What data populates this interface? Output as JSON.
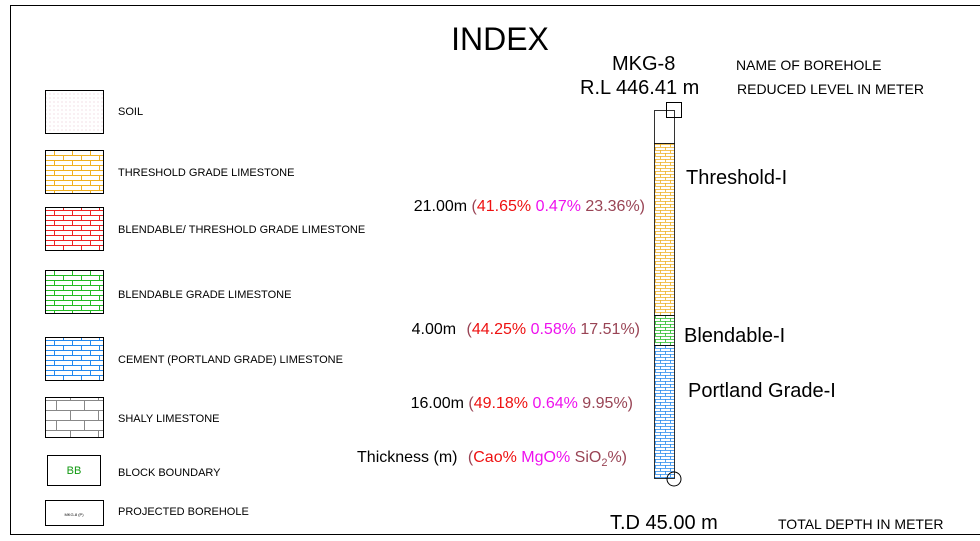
{
  "title": "INDEX",
  "legend": [
    {
      "label": "SOIL"
    },
    {
      "label": "THRESHOLD GRADE LIMESTONE"
    },
    {
      "label": "BLENDABLE/ THRESHOLD GRADE LIMESTONE"
    },
    {
      "label": "BLENDABLE GRADE LIMESTONE"
    },
    {
      "label": "CEMENT (PORTLAND GRADE) LIMESTONE"
    },
    {
      "label": "SHALY LIMESTONE"
    },
    {
      "symbol": "BB",
      "label": "BLOCK BOUNDARY"
    },
    {
      "symbol": "MKG-8 (P)",
      "label": "PROJECTED BOREHOLE"
    }
  ],
  "borehole": {
    "name": "MKG-8",
    "name_note": "NAME OF BOREHOLE",
    "rl": "R.L 446.41 m",
    "rl_note": "REDUCED LEVEL IN METER",
    "td": "T.D 45.00 m",
    "td_note": "TOTAL DEPTH IN METER",
    "layers": [
      {
        "label": "Threshold-I",
        "thickness": "21.00m",
        "cao": "41.65%",
        "mgo": "0.47%",
        "sio2": "23.36%"
      },
      {
        "label": "Blendable-I",
        "thickness": "4.00m",
        "cao": "44.25%",
        "mgo": "0.58%",
        "sio2": "17.51%"
      },
      {
        "label": "Portland Grade-I",
        "thickness": "16.00m",
        "cao": "49.18%",
        "mgo": "0.64%",
        "sio2": "9.95%"
      }
    ]
  },
  "key": {
    "thickness": "Thickness (m)",
    "cao": "Cao%",
    "mgo": "MgO%",
    "sio2_base": "SiO",
    "sio2_sub": "2",
    "sio2_tail": "%"
  }
}
